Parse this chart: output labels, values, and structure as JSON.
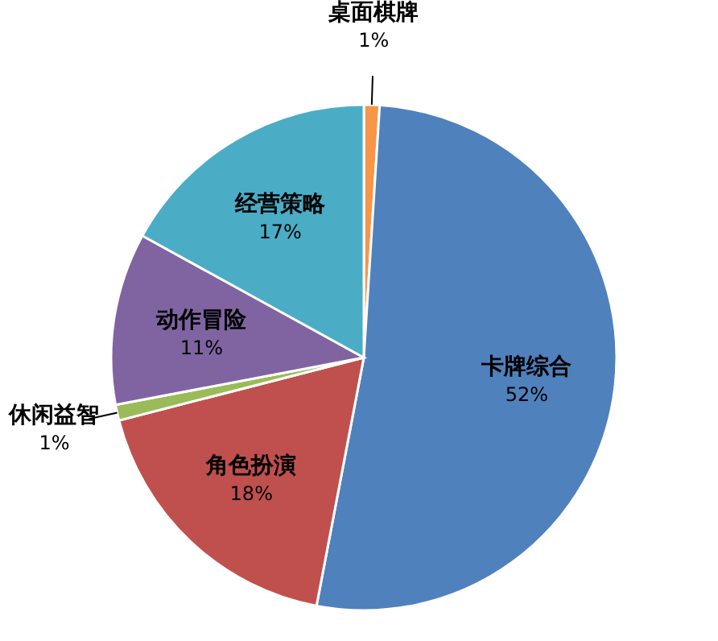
{
  "chart_data": {
    "type": "pie",
    "categories": [
      "桌面棋牌",
      "卡牌综合",
      "角色扮演",
      "休闲益智",
      "动作冒险",
      "经营策略"
    ],
    "values": [
      1,
      52,
      18,
      1,
      11,
      17
    ],
    "colors": [
      "#f79646",
      "#4f81bd",
      "#c0504d",
      "#9bbb59",
      "#8064a2",
      "#4bacc6"
    ],
    "value_labels": [
      "1%",
      "52%",
      "18%",
      "1%",
      "11%",
      "17%"
    ]
  }
}
